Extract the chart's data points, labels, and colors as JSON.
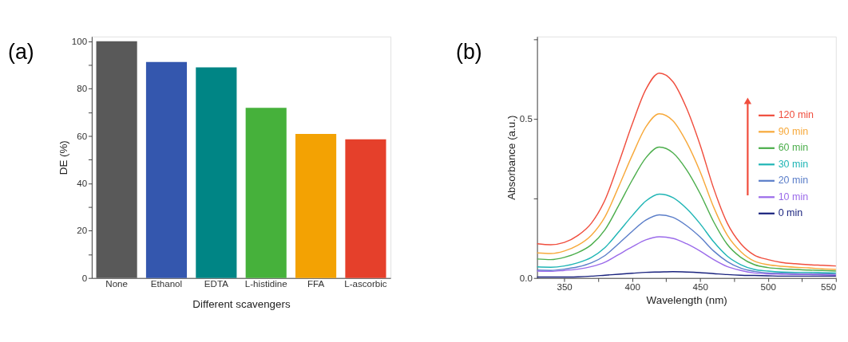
{
  "chart_data": [
    {
      "type": "bar",
      "title": "(a)",
      "xlabel": "Different scavengers",
      "ylabel": "DE (%)",
      "categories": [
        "None",
        "Ethanol",
        "EDTA",
        "L-histidine",
        "FFA",
        "L-ascorbic"
      ],
      "values": [
        100,
        91.3,
        89.0,
        71.9,
        60.9,
        58.6
      ],
      "colors": [
        "#595959",
        "#3457ae",
        "#008585",
        "#46b13b",
        "#f3a203",
        "#e5402b"
      ],
      "ylim": [
        0,
        102
      ],
      "yticks": [
        0,
        {
          "value": 10,
          "label": null
        },
        20,
        {
          "value": 30,
          "label": null
        },
        40,
        {
          "value": 50,
          "label": null
        },
        60,
        {
          "value": 70,
          "label": null
        },
        80,
        {
          "value": 90,
          "label": null
        },
        100
      ],
      "grid": false
    },
    {
      "type": "line",
      "title": "(b)",
      "xlabel": "Wavelength (nm)",
      "ylabel": "Absorbance (a.u.)",
      "x": [
        330,
        340,
        350,
        360,
        370,
        380,
        390,
        400,
        410,
        420,
        430,
        440,
        450,
        460,
        470,
        480,
        490,
        500,
        510,
        520,
        530,
        540,
        550
      ],
      "series": [
        {
          "name": "120 min",
          "color": "#f04e3e",
          "values": [
            0.108,
            0.105,
            0.112,
            0.134,
            0.173,
            0.246,
            0.361,
            0.484,
            0.593,
            0.645,
            0.618,
            0.535,
            0.419,
            0.282,
            0.173,
            0.108,
            0.072,
            0.058,
            0.049,
            0.045,
            0.042,
            0.04,
            0.038
          ]
        },
        {
          "name": "90 min",
          "color": "#f7a93b",
          "values": [
            0.079,
            0.077,
            0.085,
            0.103,
            0.135,
            0.193,
            0.287,
            0.386,
            0.475,
            0.517,
            0.495,
            0.428,
            0.335,
            0.223,
            0.135,
            0.083,
            0.053,
            0.042,
            0.037,
            0.034,
            0.032,
            0.029,
            0.027
          ]
        },
        {
          "name": "60 min",
          "color": "#4cae4c",
          "values": [
            0.06,
            0.058,
            0.065,
            0.08,
            0.105,
            0.152,
            0.228,
            0.308,
            0.378,
            0.412,
            0.394,
            0.341,
            0.266,
            0.177,
            0.106,
            0.065,
            0.042,
            0.033,
            0.029,
            0.027,
            0.025,
            0.024,
            0.022
          ]
        },
        {
          "name": "30 min",
          "color": "#1fb5b5",
          "values": [
            0.035,
            0.034,
            0.038,
            0.048,
            0.065,
            0.096,
            0.145,
            0.196,
            0.242,
            0.264,
            0.253,
            0.219,
            0.171,
            0.114,
            0.069,
            0.042,
            0.027,
            0.022,
            0.019,
            0.018,
            0.018,
            0.017,
            0.016
          ]
        },
        {
          "name": "20 min",
          "color": "#5b7ec9",
          "values": [
            0.025,
            0.024,
            0.028,
            0.035,
            0.048,
            0.071,
            0.108,
            0.147,
            0.182,
            0.199,
            0.191,
            0.165,
            0.129,
            0.085,
            0.052,
            0.031,
            0.021,
            0.016,
            0.015,
            0.014,
            0.013,
            0.013,
            0.012
          ]
        },
        {
          "name": "10 min",
          "color": "#9b6bea",
          "values": [
            0.022,
            0.021,
            0.024,
            0.028,
            0.036,
            0.05,
            0.074,
            0.098,
            0.12,
            0.13,
            0.125,
            0.108,
            0.085,
            0.058,
            0.036,
            0.024,
            0.016,
            0.013,
            0.012,
            0.011,
            0.011,
            0.01,
            0.009
          ]
        },
        {
          "name": "0 min",
          "color": "#1a237e",
          "values": [
            0.003,
            0.003,
            0.003,
            0.004,
            0.006,
            0.009,
            0.012,
            0.015,
            0.018,
            0.019,
            0.02,
            0.019,
            0.017,
            0.014,
            0.011,
            0.009,
            0.008,
            0.007,
            0.006,
            0.006,
            0.006,
            0.006,
            0.006
          ]
        }
      ],
      "xlim": [
        330,
        550
      ],
      "xticks": [
        350,
        {
          "value": 375,
          "label": null
        },
        400,
        {
          "value": 425,
          "label": null
        },
        450,
        {
          "value": 475,
          "label": null
        },
        500,
        {
          "value": 525,
          "label": null
        },
        550
      ],
      "ylim": [
        0,
        0.76
      ],
      "yticks": [
        {
          "value": 0,
          "label": "0.0"
        },
        {
          "value": 0.25,
          "label": null
        },
        0.5,
        {
          "value": 0.75,
          "label": null
        }
      ],
      "grid": false,
      "legend": "right",
      "marker": "none",
      "line_style": "solid"
    }
  ]
}
